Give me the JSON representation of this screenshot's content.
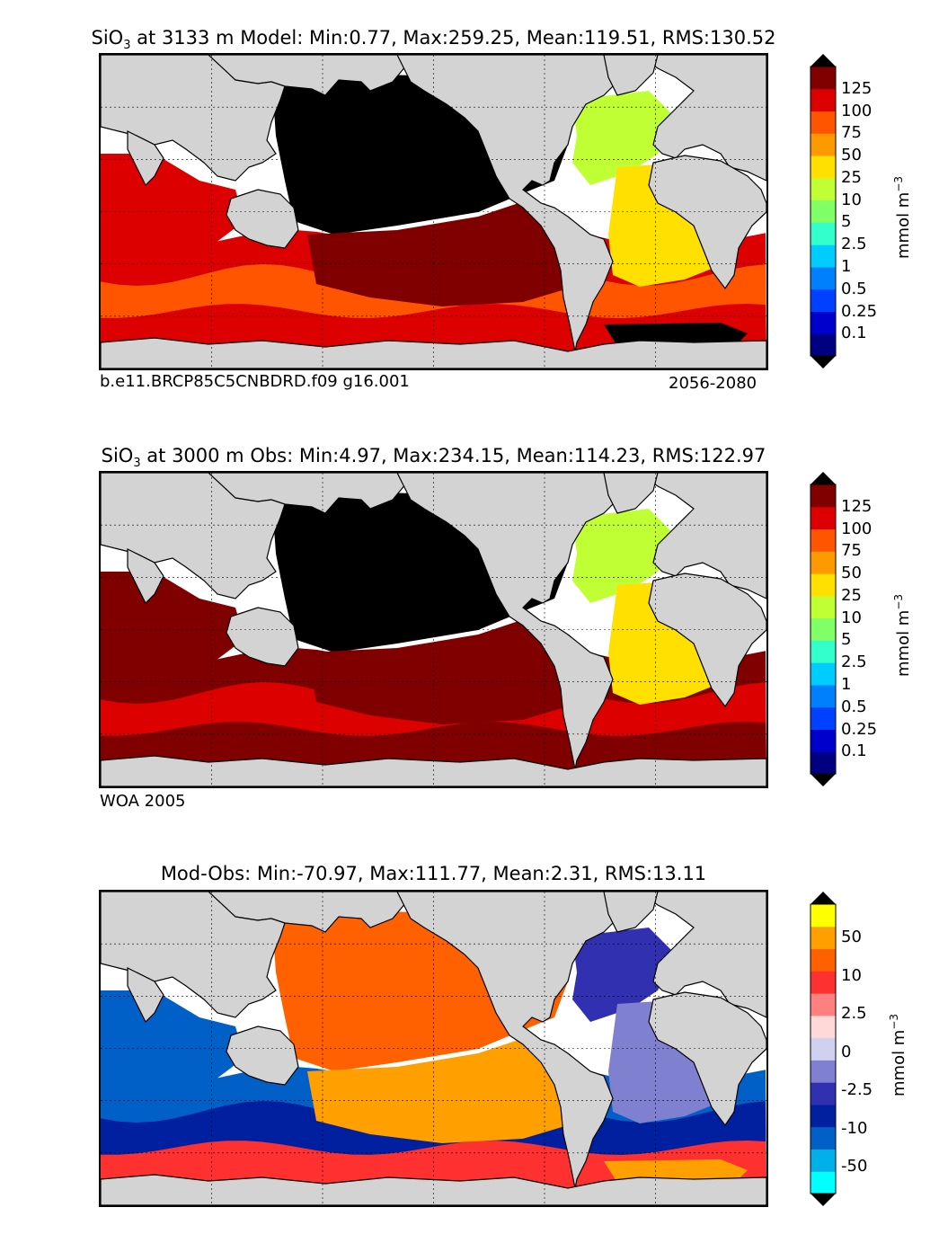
{
  "panels": [
    {
      "title_prefix": "SiO",
      "title_sub": "3",
      "title_rest": " at 3133 m Model: Min:0.77, Max:259.25, Mean:119.51, RMS:130.52",
      "left_caption": "b.e11.BRCP85C5CNBDRD.f09 g16.001",
      "right_caption": "2056-2080",
      "units": "mmol m",
      "units_sup": "−3",
      "colorbar": {
        "labels": [
          "125",
          "100",
          "75",
          "50",
          "25",
          "10",
          "5",
          "2.5",
          "1",
          "0.5",
          "0.25",
          "0.1"
        ],
        "colors": [
          "#000080",
          "#0000cd",
          "#0040ff",
          "#0080ff",
          "#00ccff",
          "#33ffcc",
          "#80ff66",
          "#c0ff33",
          "#ffe000",
          "#ff9900",
          "#ff5500",
          "#dd0000",
          "#800000"
        ]
      },
      "fields": {
        "pacific": "#000000",
        "atlantic_north": "#c0ff33",
        "atlantic_south": "#ffe000",
        "indian": "#dd0000",
        "southern_inner": "#ff5500",
        "southern_outer": "#dd0000",
        "south_pacific": "#800000",
        "arctic": "#ff9900",
        "weddell": "#000000"
      }
    },
    {
      "title_prefix": "SiO",
      "title_sub": "3",
      "title_rest": " at 3000 m Obs: Min:4.97, Max:234.15, Mean:114.23, RMS:122.97",
      "left_caption": "WOA 2005",
      "right_caption": "",
      "units": "mmol m",
      "units_sup": "−3",
      "colorbar": {
        "labels": [
          "125",
          "100",
          "75",
          "50",
          "25",
          "10",
          "5",
          "2.5",
          "1",
          "0.5",
          "0.25",
          "0.1"
        ],
        "colors": [
          "#000080",
          "#0000cd",
          "#0040ff",
          "#0080ff",
          "#00ccff",
          "#33ffcc",
          "#80ff66",
          "#c0ff33",
          "#ffe000",
          "#ff9900",
          "#ff5500",
          "#dd0000",
          "#800000"
        ]
      },
      "fields": {
        "pacific": "#000000",
        "atlantic_north": "#c0ff33",
        "atlantic_south": "#ffe000",
        "indian": "#800000",
        "southern_inner": "#dd0000",
        "southern_outer": "#800000",
        "south_pacific": "#800000",
        "arctic": "#c0ff33",
        "weddell": "#800000"
      }
    },
    {
      "title_prefix": "Mod-Obs: Min:-70.97, Max:111.77, Mean:2.31, RMS:13.11",
      "title_sub": "",
      "title_rest": "",
      "left_caption": "",
      "right_caption": "",
      "units": "mmol m",
      "units_sup": "−3",
      "colorbar": {
        "labels": [
          "50",
          "10",
          "2.5",
          "0",
          "-2.5",
          "-10",
          "-50"
        ],
        "colors": [
          "#00ffff",
          "#00b0e8",
          "#0060c8",
          "#0020a0",
          "#3030b0",
          "#8080d0",
          "#d0d0f0",
          "#ffd8d8",
          "#ff8080",
          "#ff3030",
          "#ff6000",
          "#ffa000",
          "#ffff00"
        ]
      },
      "fields": {
        "pacific": "#ff6000",
        "atlantic_north": "#3030b0",
        "atlantic_south": "#8080d0",
        "indian": "#0060c8",
        "southern_inner": "#0020a0",
        "southern_outer": "#ff3030",
        "south_pacific": "#ffa000",
        "arctic": "#ffff00",
        "weddell": "#ffa000"
      }
    }
  ]
}
